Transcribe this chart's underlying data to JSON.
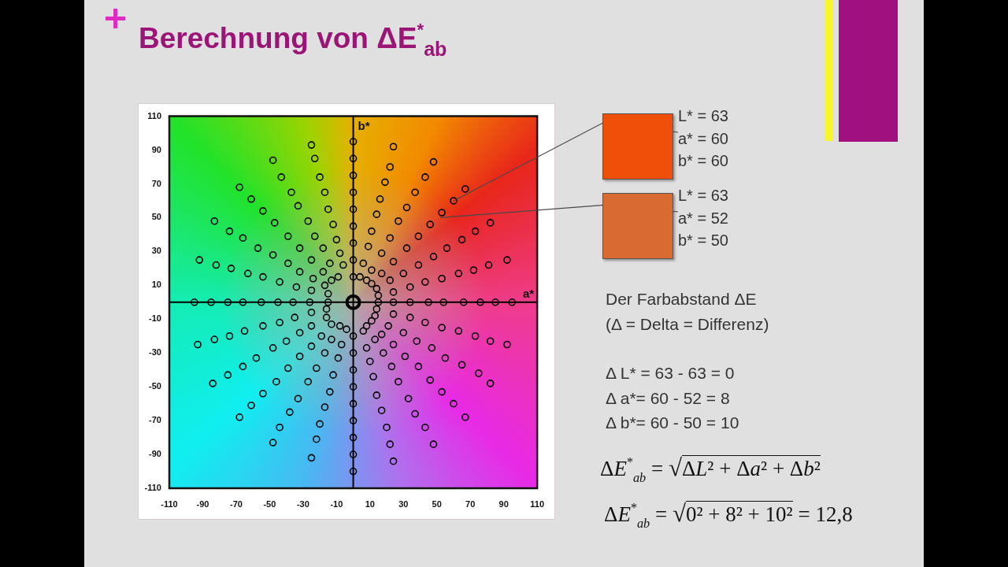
{
  "chart_data": {
    "type": "scatter",
    "title": "Berechnung von ΔE$^{*}$$_{ab}$",
    "series": [
      {
        "color": "#000000",
        "x": [
          -95,
          -85,
          -75,
          -66,
          -55,
          -45,
          -36,
          -26,
          -15,
          -92,
          -82,
          -73,
          -63,
          -54,
          -44,
          -34,
          -25,
          -15,
          -83,
          -74,
          -66,
          -57,
          -48,
          -39,
          -32,
          -24,
          -17,
          -68,
          -61,
          -54,
          -47,
          -39,
          -32,
          -25,
          -18,
          -13,
          -48,
          -43,
          -37,
          -33,
          -27,
          -23,
          -18,
          -14,
          -9,
          -25,
          -23,
          -20,
          -17,
          -15,
          -12,
          -10,
          -8,
          -6,
          0,
          0,
          0,
          0,
          0,
          0,
          0,
          0,
          0,
          24,
          22,
          19,
          16,
          14,
          11,
          9,
          6,
          4,
          48,
          43,
          37,
          32,
          27,
          22,
          17,
          11,
          8,
          67,
          60,
          53,
          46,
          39,
          32,
          24,
          17,
          11,
          82,
          73,
          65,
          56,
          48,
          39,
          30,
          22,
          14,
          92,
          81,
          72,
          63,
          53,
          43,
          34,
          24,
          15,
          95,
          85,
          76,
          66,
          54,
          45,
          34,
          24,
          15,
          92,
          82,
          73,
          63,
          53,
          43,
          34,
          24,
          14,
          82,
          75,
          65,
          55,
          47,
          38,
          30,
          21,
          13,
          67,
          60,
          53,
          46,
          39,
          31,
          24,
          17,
          11,
          48,
          43,
          37,
          33,
          27,
          23,
          18,
          13,
          8,
          24,
          22,
          20,
          17,
          14,
          12,
          10,
          8,
          6,
          0,
          0,
          0,
          0,
          0,
          0,
          0,
          0,
          0,
          -25,
          -22,
          -20,
          -17,
          -14,
          -12,
          -9,
          -7,
          -4,
          -48,
          -44,
          -38,
          -33,
          -27,
          -22,
          -17,
          -13,
          -8,
          -68,
          -61,
          -54,
          -46,
          -39,
          -32,
          -25,
          -19,
          -13,
          -84,
          -75,
          -66,
          -58,
          -48,
          -40,
          -32,
          -25,
          -16,
          -93,
          -83,
          -74,
          -65,
          -54,
          -44,
          -35,
          -25,
          -16
        ],
        "values": [
          0,
          0,
          0,
          0,
          0,
          0,
          0,
          0,
          0,
          25,
          22,
          20,
          17,
          15,
          12,
          9,
          7,
          5,
          48,
          42,
          38,
          32,
          28,
          23,
          18,
          14,
          10,
          68,
          61,
          54,
          47,
          39,
          32,
          25,
          18,
          13,
          84,
          74,
          65,
          57,
          48,
          39,
          32,
          23,
          15,
          93,
          85,
          74,
          65,
          55,
          46,
          37,
          29,
          22,
          95,
          85,
          75,
          65,
          55,
          45,
          35,
          25,
          15,
          92,
          80,
          71,
          61,
          52,
          42,
          33,
          23,
          15,
          83,
          74,
          65,
          56,
          48,
          38,
          29,
          19,
          13,
          67,
          60,
          53,
          46,
          39,
          32,
          24,
          17,
          11,
          47,
          42,
          37,
          32,
          27,
          22,
          17,
          13,
          8,
          25,
          22,
          19,
          17,
          14,
          12,
          9,
          6,
          4,
          0,
          0,
          0,
          0,
          0,
          0,
          0,
          0,
          0,
          -25,
          -23,
          -20,
          -17,
          -15,
          -12,
          -9,
          -7,
          -4,
          -48,
          -42,
          -37,
          -33,
          -27,
          -23,
          -18,
          -14,
          -8,
          -68,
          -60,
          -53,
          -46,
          -38,
          -32,
          -25,
          -19,
          -11,
          -84,
          -74,
          -66,
          -57,
          -47,
          -38,
          -30,
          -22,
          -14,
          -94,
          -84,
          -74,
          -64,
          -55,
          -44,
          -35,
          -27,
          -17,
          -100,
          -90,
          -80,
          -70,
          -60,
          -50,
          -40,
          -30,
          -20,
          -92,
          -81,
          -72,
          -62,
          -53,
          -43,
          -33,
          -25,
          -16,
          -83,
          -74,
          -65,
          -57,
          -47,
          -39,
          -30,
          -22,
          -14,
          -68,
          -61,
          -54,
          -47,
          -39,
          -32,
          -26,
          -20,
          -13,
          -48,
          -43,
          -38,
          -33,
          -27,
          -23,
          -18,
          -14,
          -9,
          -25,
          -22,
          -20,
          -17,
          -14,
          -12,
          -9,
          -6,
          -4
        ]
      },
      {
        "color": "#000000",
        "x": [
          0
        ],
        "values": [
          0
        ]
      }
    ],
    "xlim": [
      -110,
      110
    ],
    "ylim": [
      -110,
      110
    ],
    "xticks": [
      -110,
      -90,
      -70,
      -50,
      -30,
      -10,
      10,
      30,
      50,
      70,
      90,
      110
    ],
    "yticks": [
      -110,
      -90,
      -70,
      -50,
      -30,
      -10,
      10,
      30,
      50,
      70,
      90,
      110
    ],
    "marker": "circle",
    "ref_lines": [
      {
        "axis": "x",
        "value": 0,
        "label": "b*"
      },
      {
        "axis": "y",
        "value": 0,
        "label": "a*"
      }
    ],
    "annotations": [
      {
        "text": "L* = 63\na* = 60\nb* = 60",
        "x": 60,
        "y": 60
      },
      {
        "text": "L* = 63\na* = 52\nb* = 50",
        "x": 52,
        "y": 50
      },
      "Der Farbabstand ΔE\n(Δ = Delta = Differenz)",
      "Δ L* = 63 - 63 = 0\nΔ a*= 60 - 52 = 8\nΔ b*= 60 - 50 = 10",
      "ΔE$^{*}$$_{ab}$ = √ΔL² + Δa² + Δb²",
      "ΔE$^{*}$$_{ab}$ = √0² + 8² + 10² = 12,8"
    ]
  }
}
